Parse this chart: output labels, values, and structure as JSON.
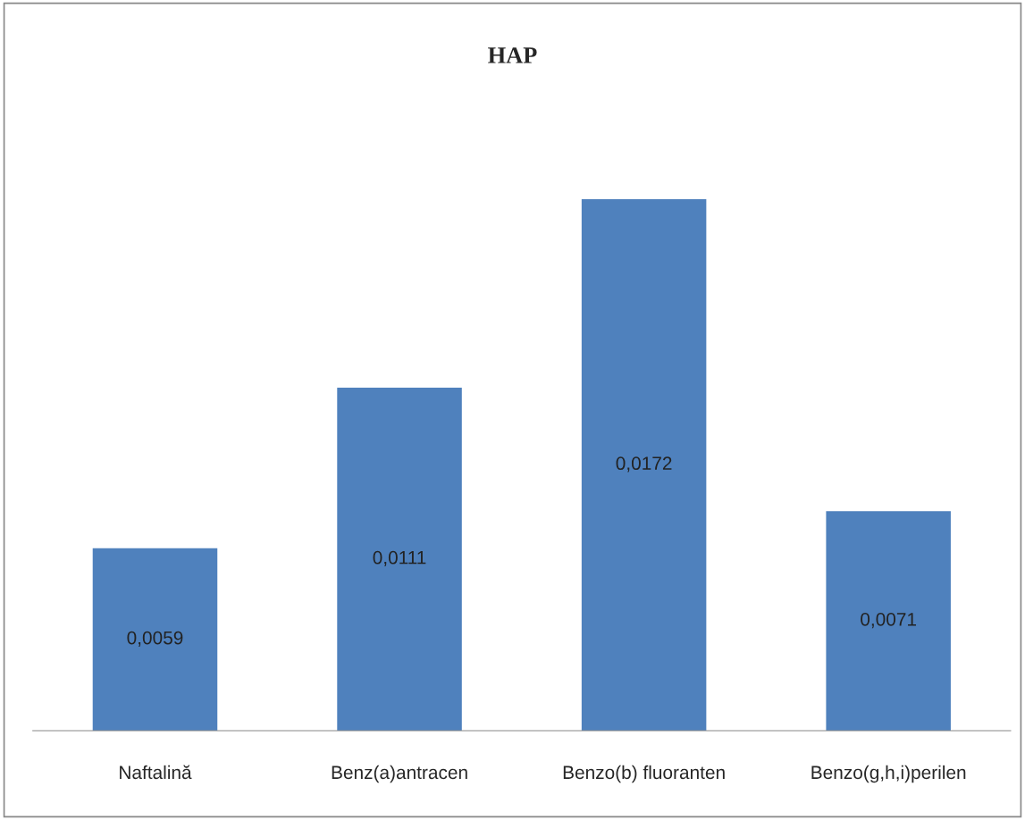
{
  "chart_data": {
    "type": "bar",
    "title": "HAP",
    "categories": [
      "Naftalină",
      "Benz(a)antracen",
      "Benzo(b) fluoranten",
      "Benzo(g,h,i)perilen"
    ],
    "values": [
      0.0059,
      0.0111,
      0.0172,
      0.0071
    ],
    "value_labels": [
      "0,0059",
      "0,0111",
      "0,0172",
      "0,0071"
    ],
    "color": "#4f81bd",
    "grid": false,
    "legend": false
  }
}
